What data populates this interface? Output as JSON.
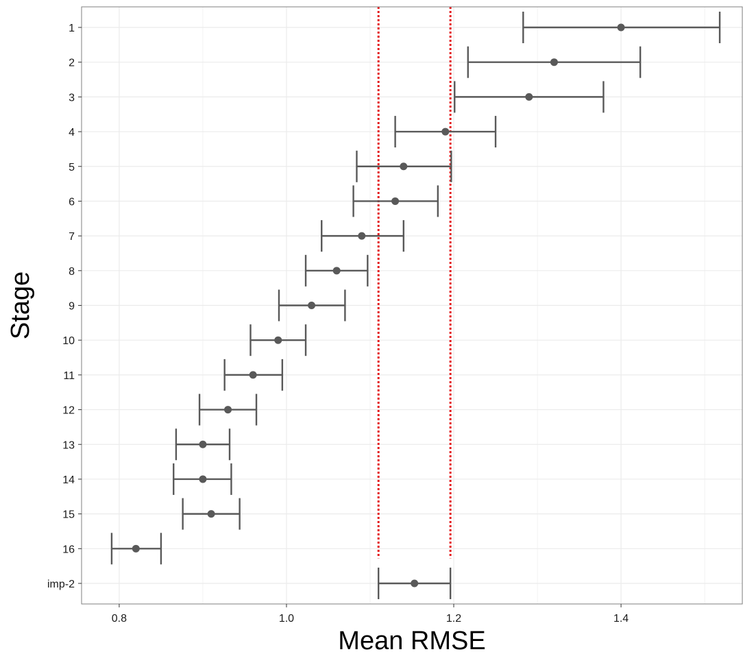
{
  "chart_data": {
    "type": "errorbar",
    "title": "",
    "xlabel": "Mean RMSE",
    "ylabel": "Stage",
    "xlim": [
      0.755,
      1.545
    ],
    "xticks": [
      0.8,
      1.0,
      1.2,
      1.4
    ],
    "xtick_labels": [
      "0.8",
      "1.0",
      "1.2",
      "1.4"
    ],
    "grid": true,
    "categories": [
      "1",
      "2",
      "3",
      "4",
      "5",
      "6",
      "7",
      "8",
      "9",
      "10",
      "11",
      "12",
      "13",
      "14",
      "15",
      "16",
      "imp-2"
    ],
    "mean": [
      1.4,
      1.32,
      1.29,
      1.19,
      1.14,
      1.13,
      1.09,
      1.06,
      1.03,
      0.99,
      0.96,
      0.93,
      0.9,
      0.9,
      0.91,
      0.82,
      1.153
    ],
    "lower": [
      1.283,
      1.217,
      1.201,
      1.13,
      1.084,
      1.08,
      1.042,
      1.023,
      0.991,
      0.957,
      0.926,
      0.896,
      0.868,
      0.865,
      0.876,
      0.791,
      1.11
    ],
    "upper": [
      1.518,
      1.423,
      1.379,
      1.25,
      1.197,
      1.181,
      1.14,
      1.097,
      1.07,
      1.023,
      0.995,
      0.964,
      0.932,
      0.934,
      0.944,
      0.85,
      1.196
    ],
    "reference_lines": [
      {
        "x": 1.11,
        "color": "#e41a1c",
        "style": "dotted"
      },
      {
        "x": 1.196,
        "color": "#e41a1c",
        "style": "dotted"
      }
    ],
    "point_color": "#595959",
    "errorbar_color": "#595959",
    "grid_color": "#ebebeb",
    "panel_border_color": "#7f7f7f"
  }
}
